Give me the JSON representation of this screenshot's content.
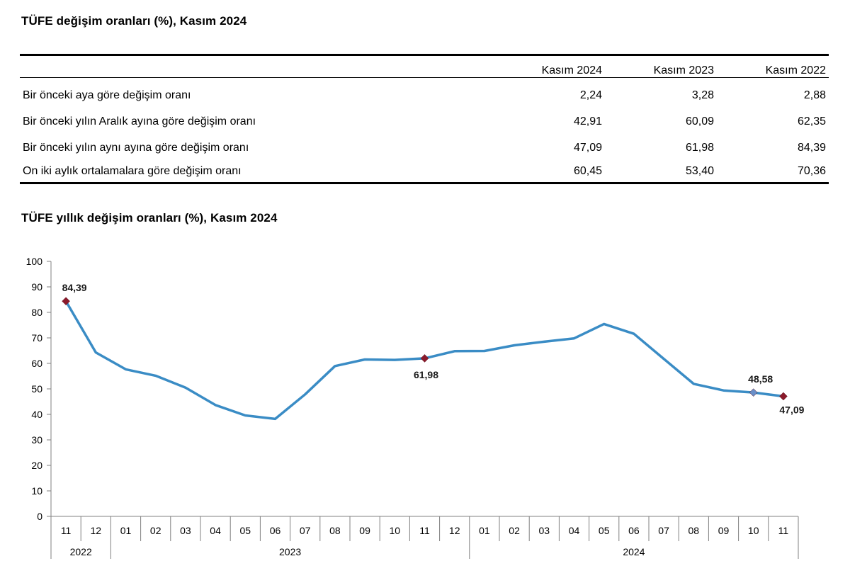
{
  "table": {
    "title": "TÜFE değişim oranları (%), Kasım 2024",
    "columns": [
      "Kasım 2024",
      "Kasım 2023",
      "Kasım 2022"
    ],
    "rows": [
      {
        "label": "Bir önceki aya göre değişim oranı",
        "values": [
          "2,24",
          "3,28",
          "2,88"
        ]
      },
      {
        "label": "Bir önceki yılın Aralık ayına göre değişim oranı",
        "values": [
          "42,91",
          "60,09",
          "62,35"
        ]
      },
      {
        "label": "Bir önceki yılın aynı ayına göre değişim oranı",
        "values": [
          "47,09",
          "61,98",
          "84,39"
        ]
      },
      {
        "label": "On iki aylık ortalamalara göre değişim oranı",
        "values": [
          "60,45",
          "53,40",
          "70,36"
        ]
      }
    ]
  },
  "chart_title": "TÜFE yıllık değişim oranları (%), Kasım 2024",
  "chart_data": {
    "type": "line",
    "title": "TÜFE yıllık değişim oranları (%), Kasım 2024",
    "xlabel": "",
    "ylabel": "",
    "ylim": [
      0,
      100
    ],
    "yticks": [
      0,
      10,
      20,
      30,
      40,
      50,
      60,
      70,
      80,
      90,
      100
    ],
    "grid": false,
    "categories": [
      "11",
      "12",
      "01",
      "02",
      "03",
      "04",
      "05",
      "06",
      "07",
      "08",
      "09",
      "10",
      "11",
      "12",
      "01",
      "02",
      "03",
      "04",
      "05",
      "06",
      "07",
      "08",
      "09",
      "10",
      "11"
    ],
    "year_groups": [
      {
        "label": "2022",
        "count": 2
      },
      {
        "label": "2023",
        "count": 12
      },
      {
        "label": "2024",
        "count": 11
      }
    ],
    "series": [
      {
        "color": "#3a8cc5",
        "values": [
          84.39,
          64.27,
          57.68,
          55.18,
          50.51,
          43.68,
          39.59,
          38.21,
          47.83,
          58.94,
          61.53,
          61.36,
          61.98,
          64.77,
          64.86,
          67.07,
          68.5,
          69.8,
          75.45,
          71.6,
          61.78,
          51.97,
          49.38,
          48.58,
          47.09
        ]
      }
    ],
    "annotations": [
      {
        "index": 0,
        "label": "84,39",
        "marker_color": "#8b1a2b"
      },
      {
        "index": 12,
        "label": "61,98",
        "marker_color": "#8b1a2b"
      },
      {
        "index": 23,
        "label": "48,58",
        "marker_color": "#6a8fc8"
      },
      {
        "index": 24,
        "label": "47,09",
        "marker_color": "#8b1a2b"
      }
    ]
  }
}
